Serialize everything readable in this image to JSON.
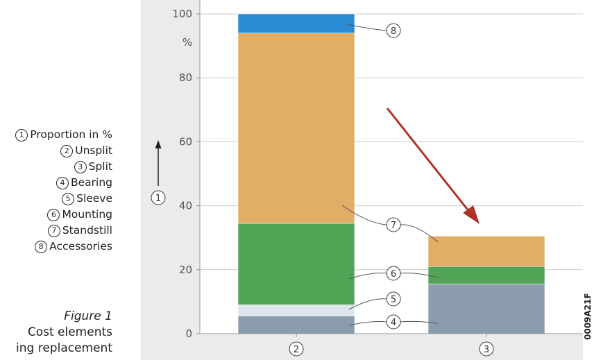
{
  "legend": [
    {
      "num": "1",
      "label": "Proportion in %"
    },
    {
      "num": "2",
      "label": "Unsplit"
    },
    {
      "num": "3",
      "label": "Split"
    },
    {
      "num": "4",
      "label": "Bearing"
    },
    {
      "num": "5",
      "label": "Sleeve"
    },
    {
      "num": "6",
      "label": "Mounting"
    },
    {
      "num": "7",
      "label": "Standstill"
    },
    {
      "num": "8",
      "label": "Accessories"
    }
  ],
  "caption": {
    "figure": "Figure 1",
    "line1": "Cost elements",
    "line2": "ing replacement"
  },
  "side_code": "0009A21F",
  "chart_data": {
    "type": "bar",
    "stacked": true,
    "categories": [
      "2",
      "3"
    ],
    "ylim": [
      0,
      100
    ],
    "yticks": [
      0,
      20,
      40,
      60,
      80,
      100
    ],
    "yunit": "%",
    "ylabel_marker": "1",
    "grid": true,
    "series": [
      {
        "name": "4",
        "color": "#8b9cac",
        "values": [
          5.5,
          15.5
        ]
      },
      {
        "name": "5",
        "color": "#dce6ee",
        "values": [
          3.5,
          0
        ]
      },
      {
        "name": "6",
        "color": "#52a557",
        "values": [
          25.5,
          5.5
        ]
      },
      {
        "name": "7",
        "color": "#e0ae64",
        "values": [
          59.5,
          9.5
        ]
      },
      {
        "name": "8",
        "color": "#2a8bd4",
        "values": [
          6,
          0
        ]
      }
    ],
    "arrow_color": "#b03028"
  }
}
